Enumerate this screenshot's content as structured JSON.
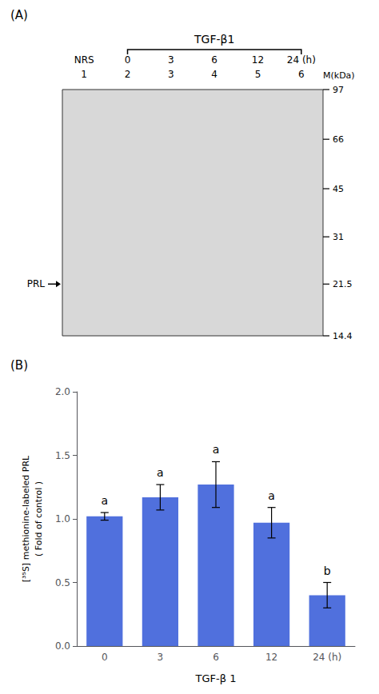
{
  "chart_data": [
    {
      "type": "gel",
      "title": "(A)",
      "bracket": {
        "text": "TGF-β1",
        "from": "0",
        "to": "24 (h)"
      },
      "categories": [
        "NRS",
        "0",
        "3",
        "6",
        "12",
        "24 (h)"
      ],
      "lane_numbers": [
        "1",
        "2",
        "3",
        "4",
        "5",
        "6"
      ],
      "ylabel": "M(kDa)",
      "log": "y",
      "ylim": [
        14.4,
        97
      ],
      "yticks": [
        97,
        66,
        45,
        31,
        21.5,
        14.4
      ],
      "annotations": [
        {
          "text": "PRL",
          "y": 21.5
        }
      ],
      "grid": false
    },
    {
      "type": "bar",
      "title": "(B)",
      "categories": [
        "0",
        "3",
        "6",
        "12",
        "24 (h)"
      ],
      "values": [
        1.02,
        1.17,
        1.27,
        0.97,
        0.4
      ],
      "errors": [
        0.03,
        0.1,
        0.18,
        0.12,
        0.1
      ],
      "sig_labels": [
        "a",
        "a",
        "a",
        "a",
        "b"
      ],
      "xlabel": "TGF-β 1",
      "ylabel": "[³⁵S] methionine-labeled PRL\n( Fold of control )",
      "ylim": [
        0.0,
        2.0
      ],
      "yticks": [
        {
          "value": 0.0,
          "label": "0.0"
        },
        0.5,
        {
          "value": 1.0,
          "label": "1.0"
        },
        1.5,
        {
          "value": 2.0,
          "label": "2.0"
        }
      ],
      "grid": false
    }
  ]
}
